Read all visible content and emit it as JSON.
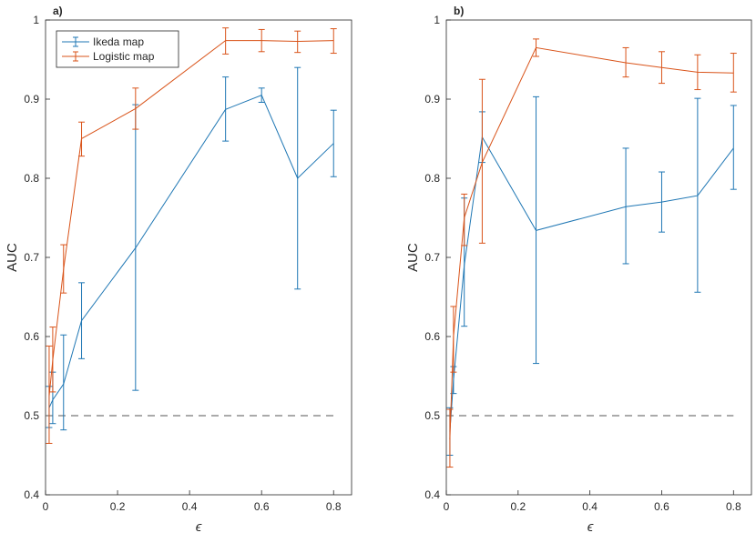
{
  "chart_data": [
    {
      "panel_label": "a)",
      "type": "line",
      "xlabel": "ϵ",
      "ylabel": "AUC",
      "xlim": [
        0,
        0.85
      ],
      "ylim": [
        0.4,
        1.0
      ],
      "xticks": [
        0,
        0.2,
        0.4,
        0.6,
        0.8
      ],
      "xtick_labels": [
        "0",
        "0.2",
        "0.4",
        "0.6",
        "0.8"
      ],
      "yticks": [
        0.4,
        0.5,
        0.6,
        0.7,
        0.8,
        0.9,
        1.0
      ],
      "ytick_labels": [
        "0.4",
        "0.5",
        "0.6",
        "0.7",
        "0.8",
        "0.9",
        "1"
      ],
      "grid": false,
      "legend_position": "top-left",
      "baseline": {
        "y": 0.5,
        "x_range": [
          0,
          0.8
        ],
        "style": "dashed",
        "color": "#555555"
      },
      "series": [
        {
          "name": "Ikeda map",
          "color": "#1f77b4",
          "x": [
            0.01,
            0.02,
            0.05,
            0.1,
            0.25,
            0.5,
            0.6,
            0.7,
            0.8
          ],
          "y": [
            0.51,
            0.52,
            0.54,
            0.62,
            0.712,
            0.887,
            0.905,
            0.8,
            0.844
          ],
          "err_low": [
            0.485,
            0.49,
            0.482,
            0.572,
            0.532,
            0.847,
            0.896,
            0.66,
            0.802
          ],
          "err_high": [
            0.537,
            0.555,
            0.602,
            0.668,
            0.893,
            0.928,
            0.914,
            0.94,
            0.886
          ]
        },
        {
          "name": "Logistic map",
          "color": "#d95319",
          "x": [
            0.01,
            0.02,
            0.05,
            0.1,
            0.25,
            0.5,
            0.6,
            0.7,
            0.8
          ],
          "y": [
            0.525,
            0.57,
            0.685,
            0.85,
            0.888,
            0.974,
            0.974,
            0.973,
            0.974
          ],
          "err_low": [
            0.465,
            0.53,
            0.655,
            0.828,
            0.862,
            0.957,
            0.96,
            0.959,
            0.958
          ],
          "err_high": [
            0.588,
            0.612,
            0.716,
            0.871,
            0.914,
            0.99,
            0.988,
            0.986,
            0.989
          ]
        }
      ]
    },
    {
      "panel_label": "b)",
      "type": "line",
      "xlabel": "ϵ",
      "ylabel": "AUC",
      "xlim": [
        0,
        0.85
      ],
      "ylim": [
        0.4,
        1.0
      ],
      "xticks": [
        0,
        0.2,
        0.4,
        0.6,
        0.8
      ],
      "xtick_labels": [
        "0",
        "0.2",
        "0.4",
        "0.6",
        "0.8"
      ],
      "yticks": [
        0.4,
        0.5,
        0.6,
        0.7,
        0.8,
        0.9,
        1.0
      ],
      "ytick_labels": [
        "0.4",
        "0.5",
        "0.6",
        "0.7",
        "0.8",
        "0.9",
        "1"
      ],
      "grid": false,
      "baseline": {
        "y": 0.5,
        "x_range": [
          0,
          0.8
        ],
        "style": "dashed",
        "color": "#555555"
      },
      "series": [
        {
          "name": "Ikeda map",
          "color": "#1f77b4",
          "x": [
            0.01,
            0.02,
            0.05,
            0.1,
            0.25,
            0.5,
            0.6,
            0.7,
            0.8
          ],
          "y": [
            0.48,
            0.545,
            0.69,
            0.852,
            0.734,
            0.764,
            0.77,
            0.778,
            0.838
          ],
          "err_low": [
            0.45,
            0.528,
            0.613,
            0.82,
            0.566,
            0.692,
            0.732,
            0.656,
            0.786
          ],
          "err_high": [
            0.51,
            0.562,
            0.775,
            0.884,
            0.903,
            0.838,
            0.808,
            0.901,
            0.892
          ]
        },
        {
          "name": "Logistic map",
          "color": "#d95319",
          "x": [
            0.01,
            0.02,
            0.05,
            0.1,
            0.25,
            0.5,
            0.6,
            0.7,
            0.8
          ],
          "y": [
            0.47,
            0.6,
            0.75,
            0.82,
            0.965,
            0.946,
            0.94,
            0.934,
            0.933
          ],
          "err_low": [
            0.435,
            0.555,
            0.715,
            0.718,
            0.954,
            0.928,
            0.92,
            0.912,
            0.909
          ],
          "err_high": [
            0.508,
            0.638,
            0.78,
            0.925,
            0.976,
            0.965,
            0.96,
            0.956,
            0.958
          ]
        }
      ]
    }
  ]
}
